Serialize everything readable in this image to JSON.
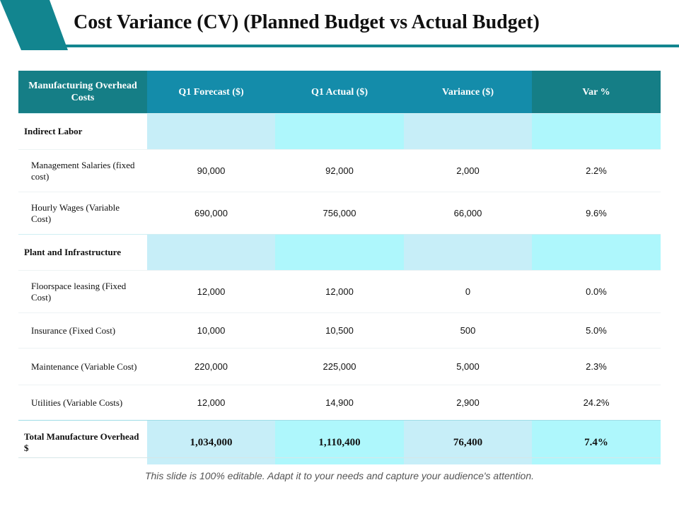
{
  "title": "Cost Variance (CV) (Planned Budget vs Actual Budget)",
  "colors": {
    "accent": "#12858f",
    "header_dark": "#157e86",
    "header_light": "#148caa",
    "band_blue": "#c7eef8",
    "band_cyan": "#aef7fc"
  },
  "table": {
    "headers": [
      "Manufacturing Overhead Costs",
      "Q1 Forecast ($)",
      "Q1 Actual ($)",
      "Variance ($)",
      "Var %"
    ],
    "sections": [
      {
        "label": "Indirect Labor",
        "rows": [
          {
            "label": "Management Salaries (fixed cost)",
            "forecast": "90,000",
            "actual": "92,000",
            "variance": "2,000",
            "var_pct": "2.2%"
          },
          {
            "label": "Hourly Wages (Variable Cost)",
            "forecast": "690,000",
            "actual": "756,000",
            "variance": "66,000",
            "var_pct": "9.6%"
          }
        ]
      },
      {
        "label": "Plant and Infrastructure",
        "rows": [
          {
            "label": "Floorspace leasing (Fixed Cost)",
            "forecast": "12,000",
            "actual": "12,000",
            "variance": "0",
            "var_pct": "0.0%"
          },
          {
            "label": "Insurance (Fixed Cost)",
            "forecast": "10,000",
            "actual": "10,500",
            "variance": "500",
            "var_pct": "5.0%"
          },
          {
            "label": "Maintenance (Variable Cost)",
            "forecast": "220,000",
            "actual": "225,000",
            "variance": "5,000",
            "var_pct": "2.3%"
          },
          {
            "label": "Utilities (Variable Costs)",
            "forecast": "12,000",
            "actual": "14,900",
            "variance": "2,900",
            "var_pct": "24.2%"
          }
        ]
      }
    ],
    "total": {
      "label": "Total Manufacture Overhead $",
      "forecast": "1,034,000",
      "actual": "1,110,400",
      "variance": "76,400",
      "var_pct": "7.4%"
    }
  },
  "footer": "This slide is 100% editable. Adapt it to your needs and capture your audience's attention."
}
